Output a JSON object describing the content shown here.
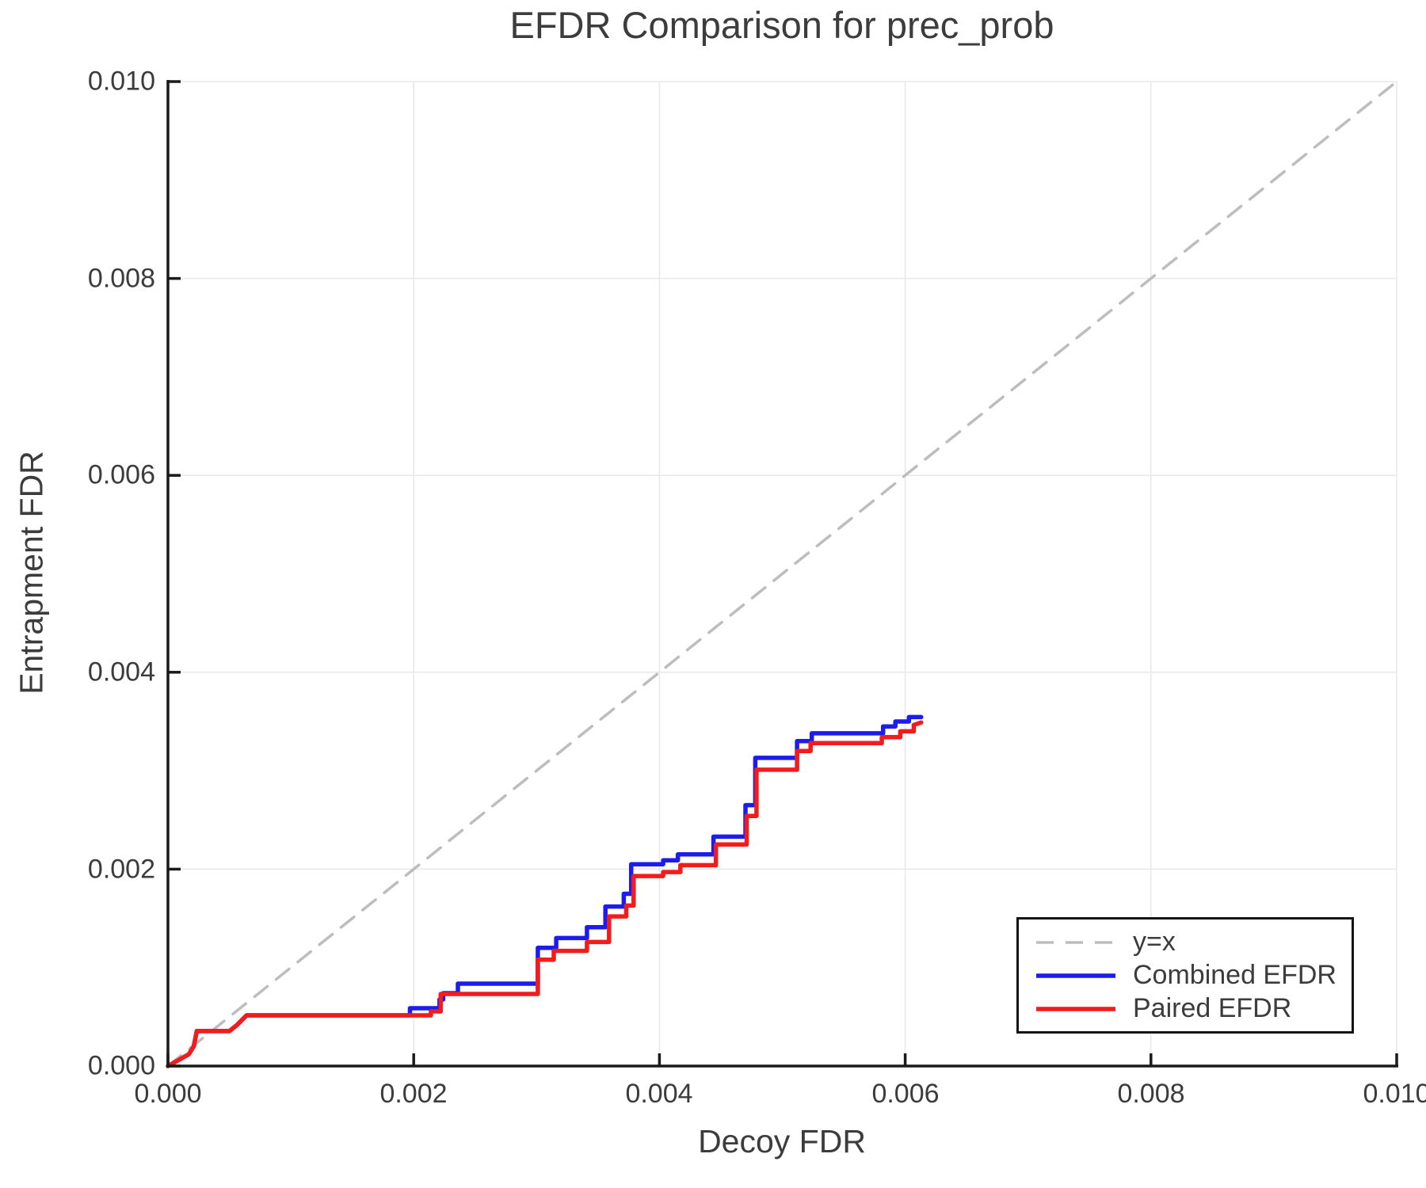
{
  "chart_data": {
    "type": "line",
    "title": "EFDR Comparison for prec_prob",
    "xlabel": "Decoy FDR",
    "ylabel": "Entrapment FDR",
    "xlim": [
      0.0,
      0.01
    ],
    "ylim": [
      0.0,
      0.01
    ],
    "x_tick_values": [
      0.0,
      0.002,
      0.004,
      0.006,
      0.008,
      0.01
    ],
    "x_tick_labels": [
      "0.000",
      "0.002",
      "0.004",
      "0.006",
      "0.008",
      "0.010"
    ],
    "y_tick_values": [
      0.0,
      0.002,
      0.004,
      0.006,
      0.008,
      0.01
    ],
    "y_tick_labels": [
      "0.000",
      "0.002",
      "0.004",
      "0.006",
      "0.008",
      "0.010"
    ],
    "grid": true,
    "legend_position": "lower right",
    "colors": {
      "axis": "#1a1a1a",
      "grid": "#e9e9e9",
      "text": "#3c3c3c",
      "identity_line": "#bdbdbd",
      "combined": "#1c1cec",
      "paired": "#f31c1c"
    },
    "series": [
      {
        "name": "y=x",
        "color": "#bdbdbd",
        "style": "dashed",
        "width": 3.5,
        "points": [
          [
            0.0,
            0.0
          ],
          [
            0.01,
            0.01
          ]
        ]
      },
      {
        "name": "Combined EFDR",
        "color": "#1c1cec",
        "style": "solid",
        "width": 5.5,
        "points": [
          [
            0.0,
            0.0
          ],
          [
            0.00017,
            0.00012
          ],
          [
            0.00021,
            0.0002
          ],
          [
            0.000235,
            0.000355
          ],
          [
            0.0005,
            0.000355
          ],
          [
            0.00056,
            0.000415
          ],
          [
            0.00064,
            0.000515
          ],
          [
            0.00197,
            0.000515
          ],
          [
            0.00197,
            0.000587
          ],
          [
            0.00221,
            0.000587
          ],
          [
            0.00221,
            0.000676
          ],
          [
            0.00224,
            0.000676
          ],
          [
            0.00224,
            0.00074
          ],
          [
            0.00236,
            0.00074
          ],
          [
            0.00236,
            0.000837
          ],
          [
            0.00301,
            0.000837
          ],
          [
            0.00301,
            0.0012
          ],
          [
            0.00316,
            0.0012
          ],
          [
            0.00316,
            0.0013
          ],
          [
            0.00341,
            0.0013
          ],
          [
            0.00341,
            0.00141
          ],
          [
            0.00356,
            0.00141
          ],
          [
            0.00356,
            0.00162
          ],
          [
            0.00371,
            0.00162
          ],
          [
            0.00371,
            0.00175
          ],
          [
            0.00377,
            0.00175
          ],
          [
            0.00377,
            0.00205
          ],
          [
            0.00403,
            0.00205
          ],
          [
            0.00403,
            0.00209
          ],
          [
            0.00415,
            0.00209
          ],
          [
            0.00415,
            0.00215
          ],
          [
            0.00444,
            0.00215
          ],
          [
            0.00444,
            0.00233
          ],
          [
            0.0047,
            0.00233
          ],
          [
            0.0047,
            0.00265
          ],
          [
            0.00478,
            0.00265
          ],
          [
            0.00478,
            0.00313
          ],
          [
            0.00512,
            0.00313
          ],
          [
            0.00512,
            0.0033
          ],
          [
            0.00524,
            0.0033
          ],
          [
            0.00524,
            0.00338
          ],
          [
            0.00582,
            0.00338
          ],
          [
            0.00582,
            0.00345
          ],
          [
            0.00592,
            0.00345
          ],
          [
            0.00592,
            0.0035
          ],
          [
            0.00603,
            0.0035
          ],
          [
            0.00603,
            0.003545
          ],
          [
            0.00613,
            0.003545
          ]
        ]
      },
      {
        "name": "Paired EFDR",
        "color": "#f31c1c",
        "style": "solid",
        "width": 5.5,
        "points": [
          [
            0.0,
            0.0
          ],
          [
            0.00017,
            0.00012
          ],
          [
            0.00021,
            0.0002
          ],
          [
            0.000235,
            0.000355
          ],
          [
            0.0005,
            0.000355
          ],
          [
            0.00056,
            0.000415
          ],
          [
            0.00064,
            0.000515
          ],
          [
            0.00214,
            0.000515
          ],
          [
            0.00214,
            0.000555
          ],
          [
            0.00222,
            0.000555
          ],
          [
            0.00222,
            0.000732
          ],
          [
            0.00301,
            0.000732
          ],
          [
            0.00301,
            0.00108
          ],
          [
            0.00314,
            0.00108
          ],
          [
            0.00314,
            0.00117
          ],
          [
            0.00341,
            0.00117
          ],
          [
            0.00341,
            0.00126
          ],
          [
            0.00359,
            0.00126
          ],
          [
            0.00359,
            0.00152
          ],
          [
            0.00373,
            0.00152
          ],
          [
            0.00373,
            0.00163
          ],
          [
            0.00379,
            0.00163
          ],
          [
            0.00379,
            0.00193
          ],
          [
            0.00403,
            0.00193
          ],
          [
            0.00403,
            0.00197
          ],
          [
            0.00417,
            0.00197
          ],
          [
            0.00417,
            0.00204
          ],
          [
            0.00446,
            0.00204
          ],
          [
            0.00446,
            0.00225
          ],
          [
            0.00471,
            0.00225
          ],
          [
            0.00471,
            0.00254
          ],
          [
            0.00479,
            0.00254
          ],
          [
            0.00479,
            0.00301
          ],
          [
            0.00512,
            0.00301
          ],
          [
            0.00512,
            0.0032
          ],
          [
            0.00523,
            0.0032
          ],
          [
            0.00523,
            0.00328
          ],
          [
            0.00581,
            0.00328
          ],
          [
            0.00581,
            0.00334
          ],
          [
            0.00596,
            0.00334
          ],
          [
            0.00596,
            0.0034
          ],
          [
            0.00607,
            0.0034
          ],
          [
            0.00607,
            0.003465
          ],
          [
            0.00613,
            0.00349
          ]
        ]
      }
    ]
  }
}
